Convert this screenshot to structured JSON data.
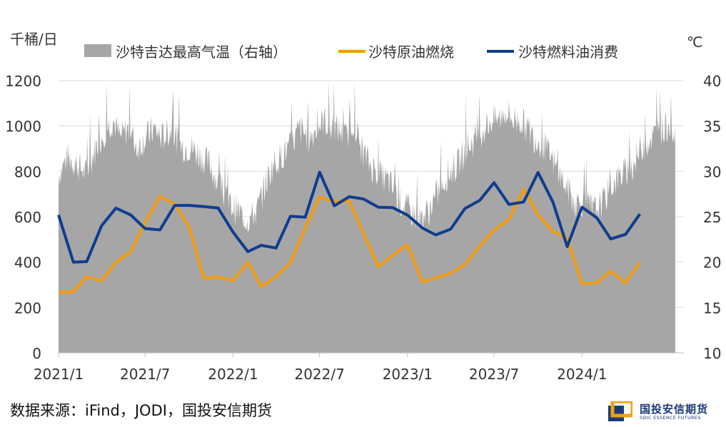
{
  "chart_data": {
    "type": "line",
    "title": "",
    "y_left_unit": "千桶/日",
    "y_right_unit": "℃",
    "ylim_left": [
      0,
      1200
    ],
    "ylim_right": [
      10,
      40
    ],
    "y_left_ticks": [
      0,
      200,
      400,
      600,
      800,
      1000,
      1200
    ],
    "y_right_ticks": [
      10,
      15,
      20,
      25,
      30,
      35,
      40
    ],
    "x_range": [
      "2021-01",
      "2024-08"
    ],
    "x_tick_labels": [
      "2021/1",
      "2021/7",
      "2022/1",
      "2022/7",
      "2023/1",
      "2023/7",
      "2024/1"
    ],
    "grid": "horizontal",
    "legend_position": "top",
    "temperature_series": {
      "name": "沙特吉达最高气温（右轴）",
      "axis": "right",
      "color": "#a6a6a6",
      "points": [
        [
          "2021-01-01",
          30
        ],
        [
          "2021-01-20",
          32
        ],
        [
          "2021-02-10",
          31
        ],
        [
          "2021-03-01",
          30
        ],
        [
          "2021-03-20",
          33
        ],
        [
          "2021-04-10",
          35
        ],
        [
          "2021-04-25",
          36
        ],
        [
          "2021-05-10",
          34
        ],
        [
          "2021-05-25",
          35
        ],
        [
          "2021-06-15",
          33
        ],
        [
          "2021-07-01",
          34
        ],
        [
          "2021-07-20",
          35
        ],
        [
          "2021-08-05",
          34
        ],
        [
          "2021-08-25",
          35
        ],
        [
          "2021-09-15",
          33
        ],
        [
          "2021-10-05",
          33
        ],
        [
          "2021-10-25",
          32
        ],
        [
          "2021-11-15",
          31
        ],
        [
          "2021-12-01",
          29
        ],
        [
          "2021-12-20",
          27
        ],
        [
          "2022-01-10",
          26
        ],
        [
          "2022-02-01",
          25
        ],
        [
          "2022-02-20",
          26
        ],
        [
          "2022-03-10",
          29
        ],
        [
          "2022-03-25",
          31
        ],
        [
          "2022-04-10",
          32
        ],
        [
          "2022-05-01",
          33
        ],
        [
          "2022-05-20",
          35
        ],
        [
          "2022-06-10",
          34
        ],
        [
          "2022-06-25",
          35
        ],
        [
          "2022-07-10",
          36
        ],
        [
          "2022-07-25",
          35
        ],
        [
          "2022-08-10",
          35
        ],
        [
          "2022-08-25",
          34
        ],
        [
          "2022-09-10",
          36
        ],
        [
          "2022-09-25",
          33
        ],
        [
          "2022-10-15",
          31
        ],
        [
          "2022-11-05",
          30
        ],
        [
          "2022-11-25",
          29
        ],
        [
          "2022-12-15",
          27
        ],
        [
          "2023-01-05",
          26
        ],
        [
          "2023-01-25",
          25
        ],
        [
          "2023-02-15",
          26
        ],
        [
          "2023-03-05",
          28
        ],
        [
          "2023-03-25",
          30
        ],
        [
          "2023-04-15",
          31
        ],
        [
          "2023-05-05",
          33
        ],
        [
          "2023-05-25",
          34
        ],
        [
          "2023-06-10",
          35
        ],
        [
          "2023-06-25",
          36
        ],
        [
          "2023-07-10",
          36
        ],
        [
          "2023-07-25",
          37
        ],
        [
          "2023-08-10",
          36
        ],
        [
          "2023-08-25",
          36
        ],
        [
          "2023-09-10",
          35
        ],
        [
          "2023-09-25",
          34
        ],
        [
          "2023-10-15",
          33
        ],
        [
          "2023-11-05",
          31
        ],
        [
          "2023-11-25",
          29
        ],
        [
          "2023-12-15",
          27
        ],
        [
          "2024-01-05",
          27
        ],
        [
          "2024-01-25",
          26
        ],
        [
          "2024-02-15",
          27
        ],
        [
          "2024-03-05",
          29
        ],
        [
          "2024-03-25",
          30
        ],
        [
          "2024-04-15",
          31
        ],
        [
          "2024-05-05",
          33
        ],
        [
          "2024-05-25",
          34
        ],
        [
          "2024-06-15",
          35
        ],
        [
          "2024-07-05",
          35
        ],
        [
          "2024-07-15",
          35
        ]
      ]
    },
    "series": [
      {
        "name": "沙特原油燃烧",
        "axis": "left",
        "color": "#f29b0f",
        "points": [
          [
            "2021-01",
            268
          ],
          [
            "2021-02",
            270
          ],
          [
            "2021-03",
            335
          ],
          [
            "2021-04",
            318
          ],
          [
            "2021-05",
            400
          ],
          [
            "2021-06",
            445
          ],
          [
            "2021-07",
            575
          ],
          [
            "2021-08",
            690
          ],
          [
            "2021-09",
            655
          ],
          [
            "2021-10",
            555
          ],
          [
            "2021-11",
            328
          ],
          [
            "2021-12",
            335
          ],
          [
            "2022-01",
            318
          ],
          [
            "2022-02",
            400
          ],
          [
            "2022-03",
            292
          ],
          [
            "2022-04",
            335
          ],
          [
            "2022-05",
            398
          ],
          [
            "2022-06",
            550
          ],
          [
            "2022-07",
            686
          ],
          [
            "2022-08",
            665
          ],
          [
            "2022-09",
            668
          ],
          [
            "2022-10",
            525
          ],
          [
            "2022-11",
            380
          ],
          [
            "2022-12",
            430
          ],
          [
            "2023-01",
            476
          ],
          [
            "2023-02",
            312
          ],
          [
            "2023-03",
            330
          ],
          [
            "2023-04",
            350
          ],
          [
            "2023-05",
            390
          ],
          [
            "2023-06",
            470
          ],
          [
            "2023-07",
            540
          ],
          [
            "2023-08",
            588
          ],
          [
            "2023-09",
            720
          ],
          [
            "2023-10",
            608
          ],
          [
            "2023-11",
            535
          ],
          [
            "2023-12",
            505
          ],
          [
            "2024-01",
            305
          ],
          [
            "2024-02",
            308
          ],
          [
            "2024-03",
            360
          ],
          [
            "2024-04",
            308
          ],
          [
            "2024-05",
            400
          ]
        ]
      },
      {
        "name": "沙特燃料油消费",
        "axis": "left",
        "color": "#0d3d8f",
        "points": [
          [
            "2021-01",
            608
          ],
          [
            "2021-02",
            400
          ],
          [
            "2021-03",
            402
          ],
          [
            "2021-04",
            560
          ],
          [
            "2021-05",
            638
          ],
          [
            "2021-06",
            608
          ],
          [
            "2021-07",
            548
          ],
          [
            "2021-08",
            542
          ],
          [
            "2021-09",
            650
          ],
          [
            "2021-10",
            650
          ],
          [
            "2021-11",
            645
          ],
          [
            "2021-12",
            638
          ],
          [
            "2022-01",
            532
          ],
          [
            "2022-02",
            446
          ],
          [
            "2022-03",
            474
          ],
          [
            "2022-04",
            462
          ],
          [
            "2022-05",
            602
          ],
          [
            "2022-06",
            598
          ],
          [
            "2022-07",
            796
          ],
          [
            "2022-08",
            648
          ],
          [
            "2022-09",
            688
          ],
          [
            "2022-10",
            678
          ],
          [
            "2022-11",
            642
          ],
          [
            "2022-12",
            640
          ],
          [
            "2023-01",
            607
          ],
          [
            "2023-02",
            550
          ],
          [
            "2023-03",
            520
          ],
          [
            "2023-04",
            545
          ],
          [
            "2023-05",
            636
          ],
          [
            "2023-06",
            672
          ],
          [
            "2023-07",
            750
          ],
          [
            "2023-08",
            654
          ],
          [
            "2023-09",
            665
          ],
          [
            "2023-10",
            795
          ],
          [
            "2023-11",
            665
          ],
          [
            "2023-12",
            468
          ],
          [
            "2024-01",
            642
          ],
          [
            "2024-02",
            595
          ],
          [
            "2024-03",
            502
          ],
          [
            "2024-04",
            522
          ],
          [
            "2024-05",
            612
          ]
        ]
      }
    ]
  },
  "footer": {
    "source": "数据来源：iFind，JODI，国投安信期货",
    "logo_cn": "国投安信期货",
    "logo_en": "SDIC ESSENCE FUTURES"
  }
}
